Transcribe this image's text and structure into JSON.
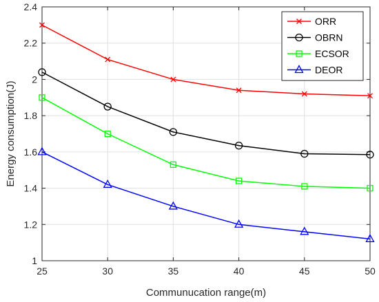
{
  "chart_data": {
    "type": "line",
    "title": "",
    "xlabel": "Communucation range(m)",
    "ylabel": "Energy consumption(J)",
    "x": [
      25,
      30,
      35,
      40,
      45,
      50
    ],
    "xlim": [
      25,
      50
    ],
    "ylim": [
      1,
      2.4
    ],
    "xticks": [
      "25",
      "30",
      "35",
      "40",
      "45",
      "50"
    ],
    "yticks": [
      "1",
      "1.2",
      "1.4",
      "1.6",
      "1.8",
      "2",
      "2.2",
      "2.4"
    ],
    "grid": true,
    "legend_position": "top-right",
    "series": [
      {
        "name": "ORR",
        "color": "#ff0000",
        "marker": "x",
        "values": [
          2.3,
          2.11,
          2.0,
          1.94,
          1.92,
          1.91
        ]
      },
      {
        "name": "OBRN",
        "color": "#000000",
        "marker": "circle",
        "values": [
          2.04,
          1.85,
          1.71,
          1.635,
          1.59,
          1.585
        ]
      },
      {
        "name": "ECSOR",
        "color": "#00ff00",
        "marker": "square",
        "values": [
          1.9,
          1.7,
          1.53,
          1.44,
          1.41,
          1.4
        ]
      },
      {
        "name": "DEOR",
        "color": "#0000ff",
        "marker": "triangle",
        "values": [
          1.6,
          1.42,
          1.3,
          1.2,
          1.16,
          1.12
        ]
      }
    ]
  }
}
